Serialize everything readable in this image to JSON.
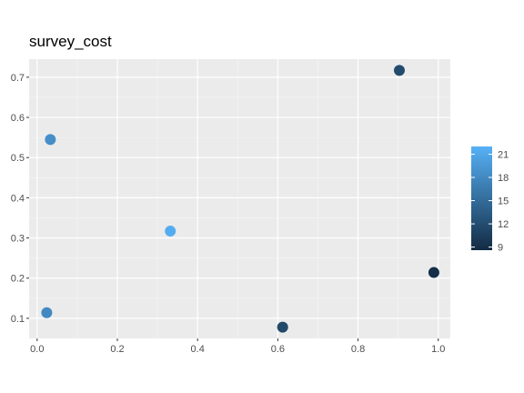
{
  "chart_data": {
    "type": "scatter",
    "title": "survey_cost",
    "xlabel": "",
    "ylabel": "",
    "xlim": [
      -0.02,
      1.03
    ],
    "ylim": [
      0.05,
      0.745
    ],
    "x_ticks": [
      0.0,
      0.2,
      0.4,
      0.6,
      0.8,
      1.0
    ],
    "x_tick_labels": [
      "0.0",
      "0.2",
      "0.4",
      "0.6",
      "0.8",
      "1.0"
    ],
    "y_ticks": [
      0.1,
      0.2,
      0.3,
      0.4,
      0.5,
      0.6,
      0.7
    ],
    "y_tick_labels": [
      "0.1",
      "0.2",
      "0.3",
      "0.4",
      "0.5",
      "0.6",
      "0.7"
    ],
    "grid": true,
    "legend": {
      "position": "right",
      "type": "colorbar",
      "range": [
        8.6,
        22.0
      ],
      "ticks": [
        9,
        12,
        15,
        18,
        21
      ],
      "tick_labels": [
        "9",
        "12",
        "15",
        "18",
        "21"
      ],
      "low_color": "#132B43",
      "high_color": "#56B1F7"
    },
    "points": [
      {
        "x": 0.033,
        "y": 0.545,
        "color_value": 18.5
      },
      {
        "x": 0.024,
        "y": 0.114,
        "color_value": 18.0
      },
      {
        "x": 0.332,
        "y": 0.317,
        "color_value": 21.5
      },
      {
        "x": 0.612,
        "y": 0.078,
        "color_value": 11.5
      },
      {
        "x": 0.903,
        "y": 0.717,
        "color_value": 11.8
      },
      {
        "x": 0.989,
        "y": 0.214,
        "color_value": 9.0
      }
    ]
  }
}
